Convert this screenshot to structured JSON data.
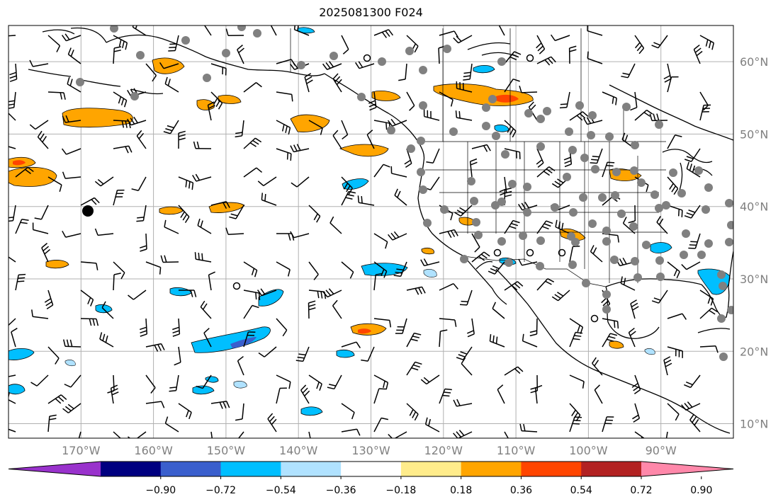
{
  "title": "2025081300 F024",
  "map": {
    "lon_range": [
      -180,
      -80
    ],
    "lat_range": [
      8,
      65
    ],
    "lon_ticks": [
      {
        "value": -170,
        "label": "170°W"
      },
      {
        "value": -160,
        "label": "160°W"
      },
      {
        "value": -150,
        "label": "150°W"
      },
      {
        "value": -140,
        "label": "140°W"
      },
      {
        "value": -130,
        "label": "130°W"
      },
      {
        "value": -120,
        "label": "120°W"
      },
      {
        "value": -110,
        "label": "110°W"
      },
      {
        "value": -100,
        "label": "100°W"
      },
      {
        "value": -90,
        "label": "90°W"
      }
    ],
    "lat_ticks": [
      {
        "value": 60,
        "label": "60°N"
      },
      {
        "value": 50,
        "label": "50°N"
      },
      {
        "value": 40,
        "label": "40°N"
      },
      {
        "value": 30,
        "label": "30°N"
      },
      {
        "value": 20,
        "label": "20°N"
      },
      {
        "value": 10,
        "label": "10°N"
      }
    ],
    "grid": true
  },
  "colorbar": {
    "colors": [
      "#9932cc",
      "#000080",
      "#3a5fcd",
      "#00bfff",
      "#b0e2ff",
      "#ffffff",
      "#ffec8b",
      "#ffa500",
      "#ff4500",
      "#b22222",
      "#ff88aa"
    ],
    "tick_labels": [
      "−0.90",
      "−0.72",
      "−0.54",
      "−0.36",
      "−0.18",
      "0.18",
      "0.36",
      "0.54",
      "0.72",
      "0.90"
    ],
    "extend": "both"
  },
  "field_colors": {
    "neg_light": "#b0e2ff",
    "neg_mid": "#00bfff",
    "neg_strong": "#3a5fcd",
    "pos_light": "#ffec8b",
    "pos_mid": "#ffa500",
    "pos_strong": "#ff4500",
    "station": "#808080"
  }
}
